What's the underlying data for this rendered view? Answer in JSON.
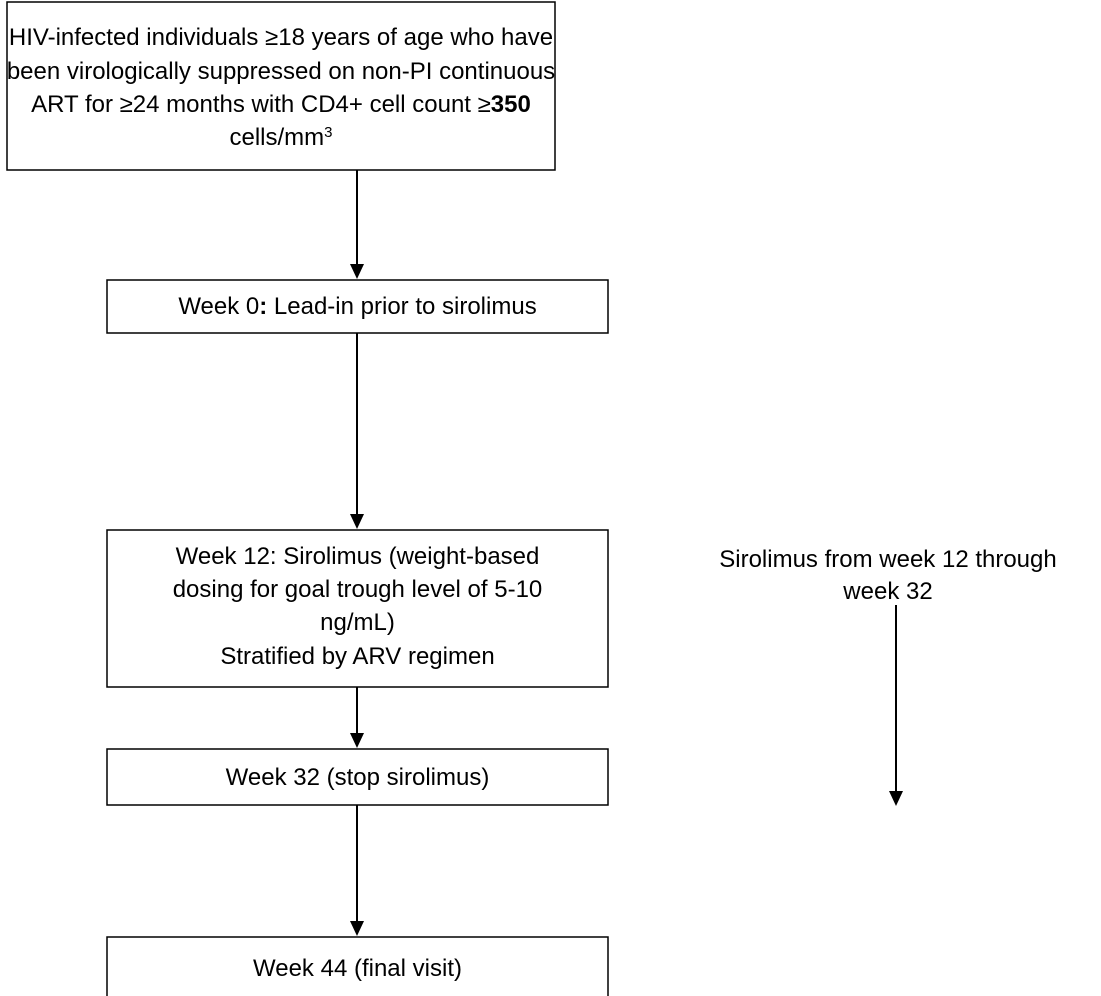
{
  "nodes": [
    {
      "lines": [
        [
          "HIV-infected individuals ≥18 years of age who have"
        ],
        [
          "been virologically suppressed on non-PI continuous"
        ],
        [
          "ART for ≥24 months with CD4+ cell count ≥",
          {
            "text": "350",
            "style": "bold"
          }
        ],
        [
          "cells/mm",
          {
            "text": "3",
            "style": "superscript"
          }
        ]
      ]
    },
    {
      "lines": [
        [
          "Week 0",
          {
            "text": ":",
            "style": "bold"
          },
          " Lead-in prior to sirolimus"
        ]
      ]
    },
    {
      "lines": [
        [
          "Week 12: Sirolimus (weight-based"
        ],
        [
          "dosing for goal trough level of 5-10"
        ],
        [
          "ng/mL)"
        ],
        [
          "Stratified by ARV regimen"
        ]
      ]
    },
    {
      "lines": [
        [
          "Week 32 (stop sirolimus)"
        ]
      ]
    },
    {
      "lines": [
        [
          "Week 44 (final visit)"
        ]
      ]
    }
  ],
  "annotation": {
    "lines": [
      [
        "Sirolimus from week 12 through"
      ],
      [
        "week 32"
      ]
    ]
  }
}
